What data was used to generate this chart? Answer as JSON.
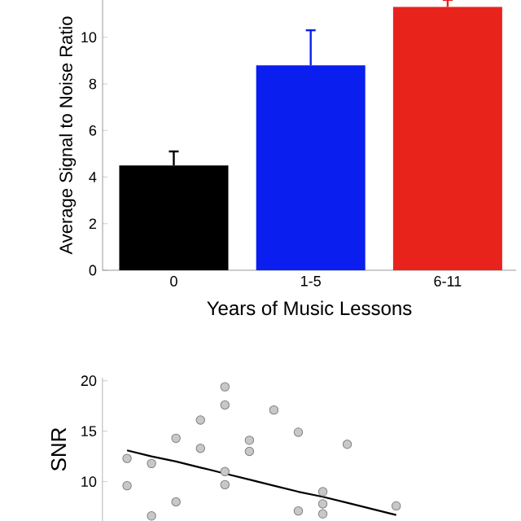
{
  "chart_data": [
    {
      "type": "bar",
      "categories": [
        "0",
        "1-5",
        "6-11"
      ],
      "values": [
        4.5,
        8.8,
        11.3
      ],
      "colors": [
        "#000000",
        "#0a1ef0",
        "#e8231c"
      ],
      "errors": [
        0.6,
        1.5,
        0.3
      ],
      "ylim": [
        0,
        11.6
      ],
      "yticks": [
        0,
        2,
        4,
        6,
        8,
        10
      ],
      "xlabel": "Years of Music Lessons",
      "ylabel": "Average Signal to Noise Ratio"
    },
    {
      "type": "scatter",
      "ylabel": "SNR",
      "categories": [
        null,
        null,
        null,
        null,
        null,
        null,
        null,
        null,
        null,
        null,
        null,
        null
      ],
      "ylim": [
        6.1,
        20.3
      ],
      "yticks": [
        10,
        15,
        20
      ],
      "series": [
        {
          "color": "#c8c8c8",
          "marker": "circle",
          "values": [
            12.3,
            11.8,
            14.3,
            16.1,
            19.4,
            14.1,
            17.1,
            14.9,
            9.0,
            13.7,
            null,
            7.6
          ]
        },
        {
          "color": "#c8c8c8",
          "marker": "circle",
          "values": [
            9.6,
            6.6,
            8.0,
            13.3,
            17.6,
            13.0,
            null,
            7.1,
            7.8,
            null,
            null,
            null
          ]
        },
        {
          "color": "#c8c8c8",
          "marker": "circle",
          "values": [
            null,
            null,
            null,
            null,
            11.0,
            null,
            null,
            null,
            6.8,
            null,
            null,
            null
          ]
        },
        {
          "color": "#c8c8c8",
          "marker": "circle",
          "values": [
            null,
            null,
            null,
            null,
            9.7,
            null,
            null,
            null,
            null,
            null,
            null,
            null
          ]
        },
        {
          "type": "line",
          "color": "#000000",
          "values": [
            13.1,
            12.5,
            12.0,
            11.4,
            10.8,
            10.2,
            9.6,
            9.0,
            8.5,
            7.9,
            7.3,
            6.7
          ]
        }
      ]
    }
  ]
}
